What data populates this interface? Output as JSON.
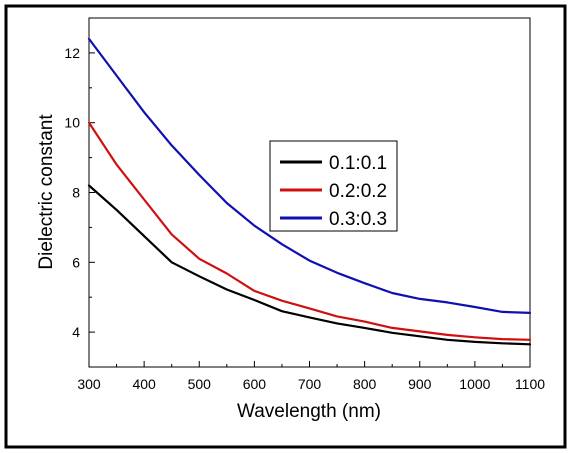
{
  "chart_data": {
    "type": "line",
    "xlabel": "Wavelength (nm)",
    "ylabel": "Dielectric constant",
    "xlim": [
      300,
      1100
    ],
    "ylim": [
      3,
      13
    ],
    "x_ticks": [
      300,
      400,
      500,
      600,
      700,
      800,
      900,
      1000,
      1100
    ],
    "y_ticks": [
      4,
      6,
      8,
      10,
      12
    ],
    "grid": false,
    "legend_position": "center-right",
    "series": [
      {
        "name": "0.1:0.1",
        "color": "#000000",
        "x": [
          300,
          350,
          400,
          450,
          500,
          550,
          600,
          650,
          700,
          750,
          800,
          850,
          900,
          950,
          1000,
          1050,
          1100
        ],
        "y": [
          8.2,
          7.5,
          6.75,
          6.0,
          5.6,
          5.22,
          4.92,
          4.6,
          4.42,
          4.25,
          4.12,
          3.98,
          3.88,
          3.78,
          3.72,
          3.68,
          3.65
        ]
      },
      {
        "name": "0.2:0.2",
        "color": "#d01010",
        "x": [
          300,
          350,
          400,
          450,
          500,
          550,
          600,
          650,
          700,
          750,
          800,
          850,
          900,
          950,
          1000,
          1050,
          1100
        ],
        "y": [
          10.0,
          8.8,
          7.8,
          6.8,
          6.1,
          5.68,
          5.18,
          4.9,
          4.68,
          4.45,
          4.3,
          4.12,
          4.02,
          3.92,
          3.85,
          3.8,
          3.78
        ]
      },
      {
        "name": "0.3:0.3",
        "color": "#1010b0",
        "x": [
          300,
          350,
          400,
          450,
          500,
          550,
          600,
          650,
          700,
          750,
          800,
          850,
          900,
          950,
          1000,
          1050,
          1100
        ],
        "y": [
          12.4,
          11.35,
          10.3,
          9.35,
          8.5,
          7.7,
          7.05,
          6.52,
          6.05,
          5.7,
          5.4,
          5.12,
          4.95,
          4.85,
          4.72,
          4.58,
          4.55
        ]
      }
    ]
  }
}
